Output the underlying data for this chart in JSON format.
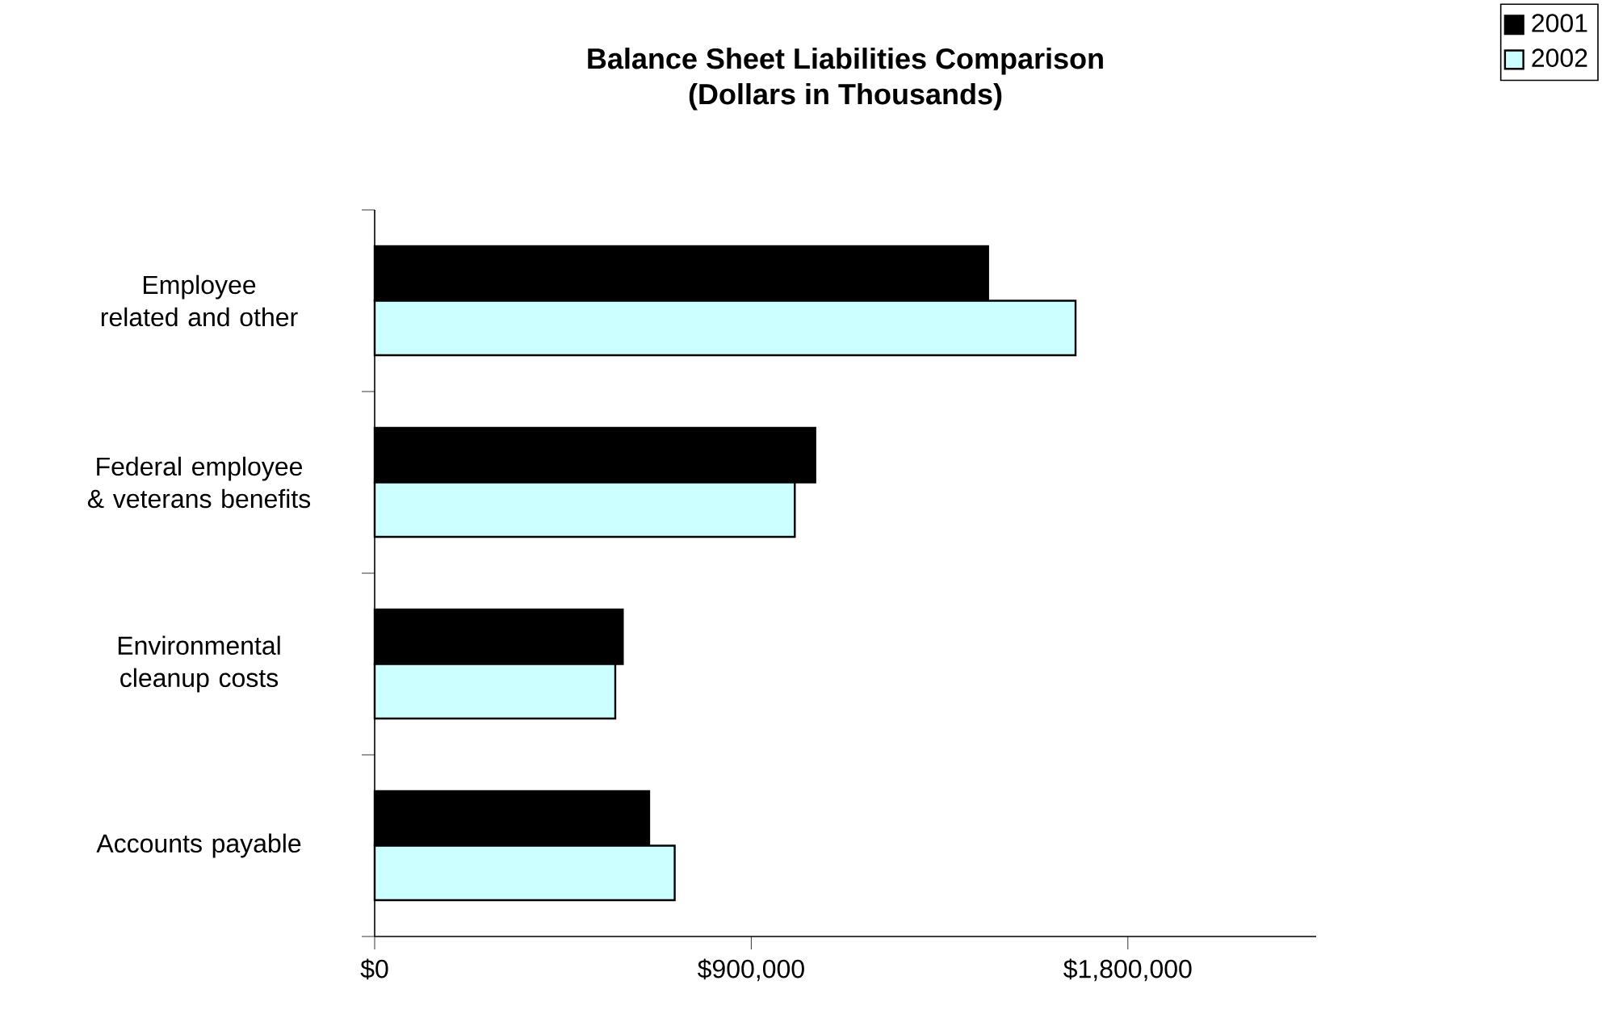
{
  "chart_data": {
    "type": "bar",
    "orientation": "horizontal",
    "title": "Balance Sheet Liabilities Comparison",
    "subtitle": "(Dollars in Thousands)",
    "categories": [
      "Employee related and other",
      "Federal employee & veterans benefits",
      "Environmental cleanup costs",
      "Accounts payable"
    ],
    "series": [
      {
        "name": "2001",
        "color": "#000000",
        "values": [
          1466000,
          1053000,
          593000,
          656000
        ]
      },
      {
        "name": "2002",
        "color": "#ccffff",
        "values": [
          1675000,
          1004000,
          575000,
          717000
        ]
      }
    ],
    "xlim": [
      0,
      2250000
    ],
    "xticks": [
      {
        "value": 0,
        "label": "$0"
      },
      {
        "value": 900000,
        "label": "$900,000"
      },
      {
        "value": 1800000,
        "label": "$1,800,000"
      }
    ],
    "legend": "top right",
    "grid": false
  }
}
